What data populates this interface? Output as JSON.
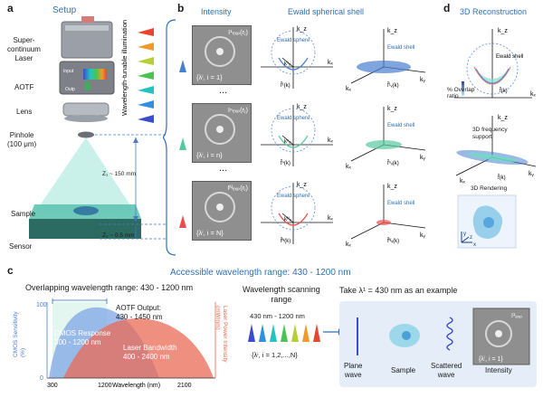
{
  "panel_a": {
    "letter": "a",
    "title": "Setup",
    "labels": {
      "laser": "Super-\ncontinuum\nLaser",
      "aotf": "AOTF",
      "lens": "Lens",
      "pinhole": "Pinhole\n(100 μm)",
      "sample": "Sample",
      "sensor": "Sensor",
      "illum": "Wavelength-tunable illumination",
      "z1": "Z₁ ~ 150 mm",
      "z2": "Z₂ ~ 0.5 mm",
      "input": "Input",
      "output": "Outp"
    }
  },
  "panel_b": {
    "letter": "b",
    "title_intensity": "Intensity",
    "title_ewald": "Ewald spherical shell",
    "rows": [
      {
        "set": "{λⁱ, i = 1}",
        "tl": "I¹ₑₓₚ(rⱼ)",
        "left_sphere": "Ewald sphere",
        "right_label": "Ewald shell",
        "k1": "k¹ₒ",
        "f1": "f̂¹(k)",
        "f2": "f̂¹ᵥ(k)",
        "color": "#4a7fd0"
      },
      {
        "set": "{λⁱ, i = n}",
        "tl": "Iⁿₑₓₚ(rⱼ)",
        "left_sphere": "Ewald sphere",
        "right_label": "Ewald shell",
        "k1": "kⁿₒ",
        "f1": "f̂ⁿ(k)",
        "f2": "f̂ⁿᵥ(k)",
        "color": "#58c9a0"
      },
      {
        "set": "{λⁱ, i = N}",
        "tl": "Iᴺₑₓₚ(rⱼ)",
        "left_sphere": "Ewald sphere",
        "right_label": "Ewald shell",
        "k1": "kᴺₒ",
        "f1": "f̂ᴺ(k)",
        "f2": "f̂ᴺᵥ(k)",
        "color": "#ef4d4d"
      }
    ],
    "dots": "...",
    "kx": "kₓ",
    "ky": "kᵧ",
    "kz": "k_z"
  },
  "panel_d": {
    "letter": "d",
    "title": "3D Reconstruction",
    "ewald_label": "Ewald shell",
    "overlap_label": "% Overlap\nratio",
    "freq_label": "3D frequency\nsupport",
    "f_label": "f̂(k)",
    "render_label": "3D Rendering",
    "axes": [
      "y",
      "x",
      "z"
    ]
  },
  "panel_c": {
    "letter": "c",
    "title": "Accessible wavelength range: 430 - 1200 nm",
    "overlap_title": "Overlapping wavelength range: 430 - 1200 nm",
    "aotf_output": "AOTF Output:\n430 - 1450 nm",
    "cmos_response": "CMOS Response\n300 - 1200 nm",
    "laser_bw": "Laser Bandwidth\n400 - 2400 nm",
    "ylabel_left": "CMOS Sensitivity\n(%)",
    "ylabel_right": "Laser Power Intensity\n(mW/nm)",
    "xlabel": "Wavelength (nm)",
    "y_ticks": [
      "100",
      "0"
    ],
    "x_ticks": [
      "300",
      "1200",
      "2100"
    ],
    "scan_title": "Wavelength scanning\nrange",
    "scan_range": "430 nm - 1200 nm",
    "scan_set": "{λⁱ, i = 1,2,...,N}",
    "example_title": "Take λ¹ = 430 nm as an example",
    "plane_wave": "Plane\nwave",
    "sample": "Sample",
    "scattered_wave": "Scattered\nwave",
    "intensity": "Intensity",
    "int_set": "{λⁱ, i = 1}",
    "int_tl": "I¹ₑₓₚ",
    "rainbow": [
      "#3a4dcc",
      "#2f8fe0",
      "#25c3c0",
      "#48c452",
      "#b6cf36",
      "#ef9a2a",
      "#e8452e"
    ]
  },
  "colors": {
    "accent_blue": "#2f6fb6",
    "shell_blue": "#5a8ae0",
    "shell_teal": "#6fdcc6",
    "shell_red": "#ef4d4d",
    "laser_red": "#e9674f",
    "cmos_blue": "#4f7fd6"
  }
}
